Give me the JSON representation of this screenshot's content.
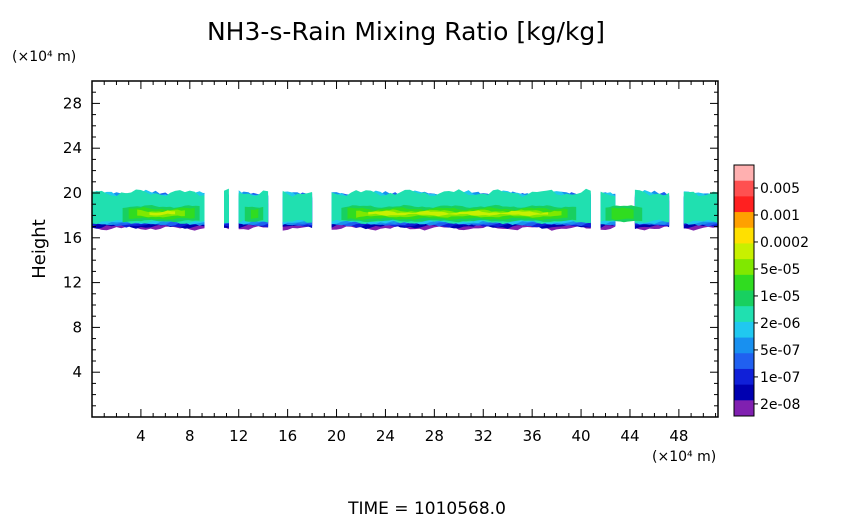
{
  "chart_data": {
    "type": "heatmap",
    "title": "NH3-s-Rain Mixing Ratio [kg/kg]",
    "xlabel": "",
    "ylabel": "Height",
    "x_unit": "(×10⁴ m)",
    "y_unit": "(×10⁴ m)",
    "time_label": "TIME  =  1010568.0",
    "xlim": [
      0,
      51.2
    ],
    "ylim": [
      0,
      30
    ],
    "x_ticks": [
      "4",
      "8",
      "12",
      "16",
      "20",
      "24",
      "28",
      "32",
      "36",
      "40",
      "44",
      "48"
    ],
    "y_ticks": [
      "4",
      "8",
      "12",
      "16",
      "20",
      "24",
      "28"
    ],
    "x_tick_values": [
      4,
      8,
      12,
      16,
      20,
      24,
      28,
      32,
      36,
      40,
      44,
      48
    ],
    "y_tick_values": [
      4,
      8,
      12,
      16,
      20,
      24,
      28
    ],
    "grid": false,
    "legend": "right-colorbar",
    "colorbar": {
      "labels": [
        "0.005",
        "0.001",
        "0.0002",
        "5e-05",
        "1e-05",
        "2e-06",
        "5e-07",
        "1e-07",
        "2e-08"
      ],
      "colors": [
        "#ffb0b0",
        "#ff5050",
        "#ff2020",
        "#ffa000",
        "#ffe000",
        "#c8f000",
        "#80e800",
        "#30dc20",
        "#18d060",
        "#20e0b0",
        "#20c8f0",
        "#1890f0",
        "#2060f0",
        "#1020d8",
        "#0000b0",
        "#8020b0"
      ]
    },
    "band": {
      "y_base": 17.0,
      "y_top": 19.5,
      "core_low": 17.5,
      "core_high": 18.8,
      "x_range": [
        0,
        51.2
      ]
    }
  }
}
